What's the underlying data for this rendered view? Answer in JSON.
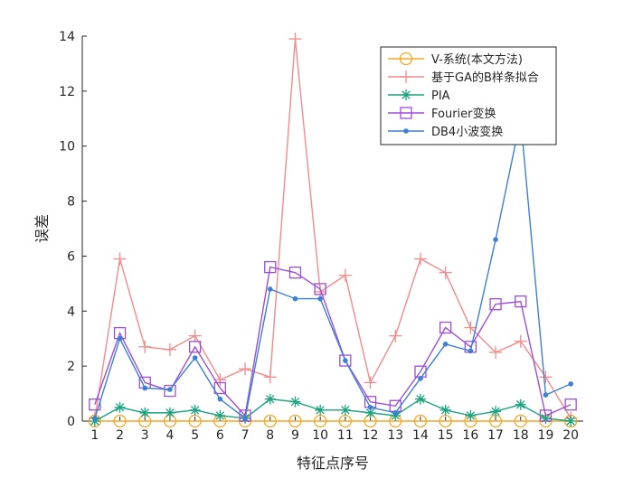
{
  "chart_data": {
    "type": "line",
    "title": "",
    "xlabel": "特征点序号",
    "ylabel": "误差",
    "xlim": [
      0.5,
      20.5
    ],
    "ylim": [
      0,
      14
    ],
    "x": [
      1,
      2,
      3,
      4,
      5,
      6,
      7,
      8,
      9,
      10,
      11,
      12,
      13,
      14,
      15,
      16,
      17,
      18,
      19,
      20
    ],
    "x_ticks": [
      "1",
      "2",
      "3",
      "4",
      "5",
      "6",
      "7",
      "8",
      "9",
      "10",
      "11",
      "12",
      "13",
      "14",
      "15",
      "16",
      "17",
      "18",
      "19",
      "20"
    ],
    "y_ticks": [
      "0",
      "2",
      "4",
      "6",
      "8",
      "10",
      "12",
      "14"
    ],
    "y_tick_values": [
      0,
      2,
      4,
      6,
      8,
      10,
      12,
      14
    ],
    "grid": false,
    "legend_position": "top-right",
    "series": [
      {
        "name": "V-系统(本文方法)",
        "color": "#f5a623",
        "marker": "circle",
        "values": [
          0,
          0,
          0,
          0,
          0,
          0,
          0,
          0,
          0,
          0,
          0,
          0,
          0,
          0,
          0,
          0,
          0,
          0,
          0,
          0
        ]
      },
      {
        "name": "基于GA的B样条拟合",
        "color": "#f28b8b",
        "marker": "plus",
        "values": [
          0.1,
          5.9,
          2.7,
          2.6,
          3.1,
          1.5,
          1.9,
          1.6,
          13.9,
          4.7,
          5.3,
          1.4,
          3.1,
          5.9,
          5.4,
          3.4,
          2.5,
          2.9,
          1.6,
          0.1
        ]
      },
      {
        "name": "PIA",
        "color": "#1aa37f",
        "marker": "asterisk",
        "values": [
          0,
          0.5,
          0.3,
          0.3,
          0.4,
          0.2,
          0.1,
          0.8,
          0.7,
          0.4,
          0.4,
          0.3,
          0.2,
          0.8,
          0.4,
          0.2,
          0.35,
          0.6,
          0.1,
          0
        ]
      },
      {
        "name": "Fourier变换",
        "color": "#9b4fd6",
        "marker": "square",
        "values": [
          0.6,
          3.2,
          1.4,
          1.1,
          2.7,
          1.2,
          0.2,
          5.6,
          5.4,
          4.8,
          2.2,
          0.7,
          0.55,
          1.8,
          3.4,
          2.7,
          4.25,
          4.35,
          0.2,
          0.6
        ]
      },
      {
        "name": "DB4小波变换",
        "color": "#3d7fd6",
        "marker": "dot",
        "values": [
          0.1,
          3.0,
          1.2,
          1.15,
          2.3,
          0.8,
          0.1,
          4.8,
          4.45,
          4.45,
          2.2,
          0.5,
          0.3,
          1.55,
          2.8,
          2.55,
          6.6,
          11.0,
          0.95,
          1.35
        ]
      }
    ]
  }
}
